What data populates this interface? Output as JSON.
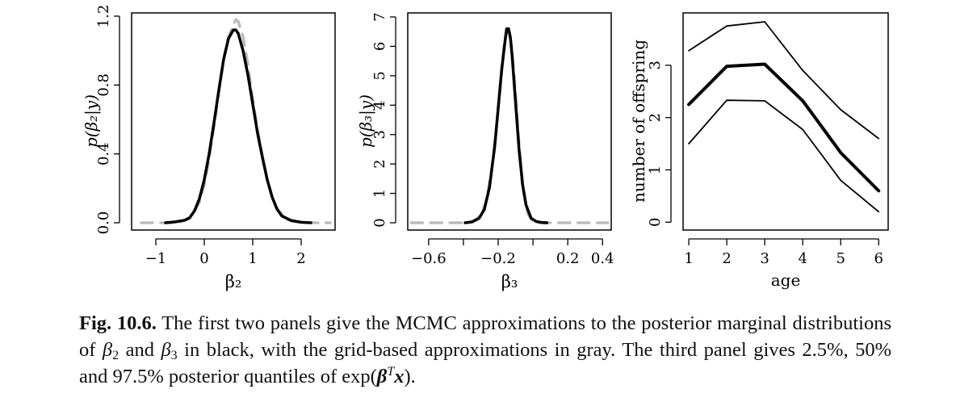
{
  "chart_data": [
    {
      "type": "line",
      "ylabel": "p(β₂|y)",
      "xlabel": "β₂",
      "xlim": [
        -1.5,
        2.7
      ],
      "ylim": [
        0,
        1.2
      ],
      "xticks": [
        -1,
        0,
        1,
        2
      ],
      "xtick_labels": [
        "−1",
        "0",
        "1",
        "2"
      ],
      "yticks": [
        0,
        0.4,
        0.8,
        1.2
      ],
      "ytick_labels": [
        "0.0",
        "0.4",
        "0.8",
        "1.2"
      ],
      "series": [
        {
          "style": "mcmc",
          "color": "#000000",
          "x": [
            -0.8,
            -0.6,
            -0.4,
            -0.3,
            -0.2,
            -0.1,
            0,
            0.1,
            0.2,
            0.3,
            0.4,
            0.5,
            0.6,
            0.65,
            0.7,
            0.8,
            0.9,
            1.0,
            1.1,
            1.2,
            1.3,
            1.4,
            1.5,
            1.6,
            1.8,
            2.0,
            2.2
          ],
          "y": [
            0.0,
            0.005,
            0.015,
            0.03,
            0.07,
            0.14,
            0.25,
            0.4,
            0.58,
            0.77,
            0.95,
            1.07,
            1.12,
            1.12,
            1.1,
            1.0,
            0.86,
            0.69,
            0.52,
            0.38,
            0.25,
            0.15,
            0.08,
            0.04,
            0.012,
            0.003,
            0.0
          ]
        },
        {
          "style": "grid",
          "color": "#bbbbbb",
          "x": [
            -1.3,
            -1.0,
            -0.7,
            -0.5,
            -0.3,
            -0.1,
            0,
            0.1,
            0.2,
            0.3,
            0.4,
            0.5,
            0.6,
            0.65,
            0.7,
            0.8,
            0.9,
            1.0,
            1.1,
            1.2,
            1.3,
            1.4,
            1.5,
            1.7,
            2.0,
            2.3,
            2.6
          ],
          "y": [
            0,
            0,
            0,
            0.005,
            0.025,
            0.12,
            0.22,
            0.37,
            0.56,
            0.76,
            0.95,
            1.08,
            1.15,
            1.18,
            1.17,
            1.08,
            0.92,
            0.72,
            0.54,
            0.38,
            0.25,
            0.15,
            0.08,
            0.02,
            0.003,
            0,
            0
          ]
        }
      ]
    },
    {
      "type": "line",
      "ylabel": "p(β₃|y)",
      "xlabel": "β₃",
      "xlim": [
        -0.72,
        0.45
      ],
      "ylim": [
        0,
        7
      ],
      "xticks": [
        -0.6,
        -0.4,
        -0.2,
        0,
        0.2,
        0.4
      ],
      "xtick_labels": [
        "−0.6",
        "",
        "−0.2",
        "",
        "0.2",
        "0.4"
      ],
      "yticks": [
        0,
        1,
        2,
        3,
        4,
        5,
        6,
        7
      ],
      "ytick_labels": [
        "0",
        "1",
        "2",
        "3",
        "4",
        "5",
        "6",
        "7"
      ],
      "series": [
        {
          "style": "mcmc",
          "color": "#000000",
          "x": [
            -0.39,
            -0.35,
            -0.31,
            -0.28,
            -0.25,
            -0.22,
            -0.2,
            -0.18,
            -0.16,
            -0.15,
            -0.14,
            -0.13,
            -0.12,
            -0.1,
            -0.08,
            -0.06,
            -0.04,
            -0.01,
            0.02,
            0.05,
            0.08
          ],
          "y": [
            0,
            0.03,
            0.15,
            0.45,
            1.2,
            2.6,
            3.9,
            5.2,
            6.2,
            6.6,
            6.6,
            6.3,
            5.7,
            4.1,
            2.5,
            1.3,
            0.6,
            0.15,
            0.04,
            0.01,
            0
          ]
        },
        {
          "style": "grid",
          "color": "#bbbbbb",
          "x": [
            -0.7,
            -0.6,
            -0.5,
            -0.4,
            -0.35,
            -0.3,
            -0.27,
            -0.24,
            -0.21,
            -0.19,
            -0.17,
            -0.155,
            -0.14,
            -0.12,
            -0.1,
            -0.08,
            -0.06,
            -0.03,
            0,
            0.05,
            0.15,
            0.25,
            0.35,
            0.43
          ],
          "y": [
            0,
            0,
            0,
            0,
            0.03,
            0.25,
            0.7,
            1.7,
            3.2,
            4.5,
            5.8,
            6.6,
            6.6,
            5.9,
            4.4,
            2.7,
            1.3,
            0.3,
            0.05,
            0,
            0,
            0,
            0,
            0
          ]
        }
      ]
    },
    {
      "type": "line",
      "ylabel": "number of offspring",
      "xlabel": "age",
      "xlim": [
        0.85,
        6.25
      ],
      "ylim": [
        -0.15,
        4.0
      ],
      "x": [
        1,
        2,
        3,
        4,
        5,
        6
      ],
      "xticks": [
        1,
        2,
        3,
        4,
        5,
        6
      ],
      "xtick_labels": [
        "1",
        "2",
        "3",
        "4",
        "5",
        "6"
      ],
      "yticks": [
        0,
        1,
        2,
        3
      ],
      "ytick_labels": [
        "0",
        "1",
        "2",
        "3"
      ],
      "series": [
        {
          "quantile": "97.5%",
          "color": "#000000",
          "values": [
            3.28,
            3.75,
            3.83,
            2.9,
            2.15,
            1.6
          ]
        },
        {
          "quantile": "50%",
          "color": "#000000",
          "values": [
            2.25,
            2.98,
            3.02,
            2.32,
            1.33,
            0.6
          ]
        },
        {
          "quantile": "2.5%",
          "color": "#000000",
          "values": [
            1.5,
            2.33,
            2.32,
            1.77,
            0.8,
            0.2
          ]
        }
      ]
    }
  ],
  "caption": {
    "label": "Fig. 10.6.",
    "part1": " The first two panels give the MCMC approximations to the posterior marginal distributions of ",
    "beta": "β",
    "sub2": "2",
    "and": " and ",
    "sub3": "3",
    "part2": " in black, with the grid-based approximations in gray. The third panel gives 2.5%, 50% and 97.5% posterior quantiles of exp(",
    "sup_t": "T",
    "x_bold": "x",
    "end": ")."
  }
}
